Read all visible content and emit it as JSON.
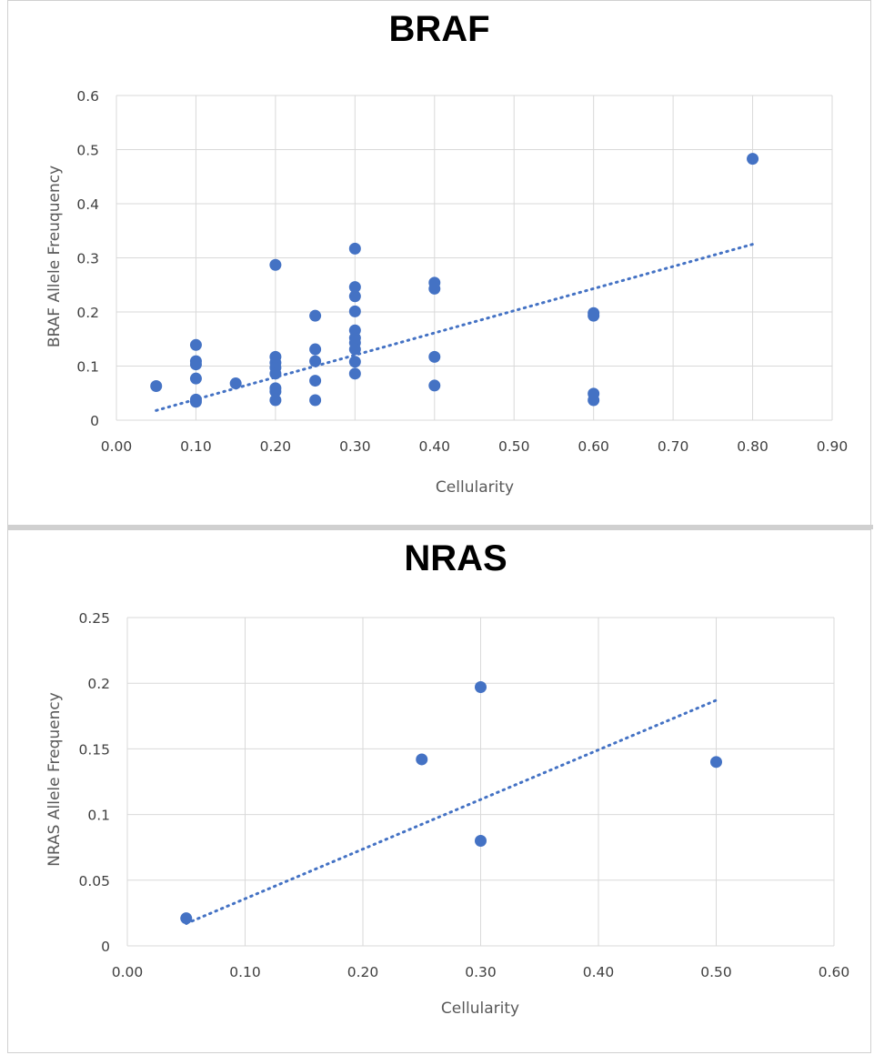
{
  "chart_data": [
    {
      "type": "scatter",
      "title": "BRAF",
      "xlabel": "Cellularity",
      "ylabel": "BRAF Allele Freuquency",
      "xlim": [
        0,
        0.9
      ],
      "ylim": [
        0,
        0.6
      ],
      "xticks": [
        "0.00",
        "0.10",
        "0.20",
        "0.30",
        "0.40",
        "0.50",
        "0.60",
        "0.70",
        "0.80",
        "0.90"
      ],
      "yticks": [
        "0",
        "0.1",
        "0.2",
        "0.3",
        "0.4",
        "0.5",
        "0.6"
      ],
      "grid": true,
      "color": "#4472c4",
      "trendline": {
        "x": [
          0.05,
          0.8
        ],
        "y": [
          0.018,
          0.325
        ],
        "style": "dotted"
      },
      "points": [
        {
          "x": 0.05,
          "y": 0.063
        },
        {
          "x": 0.1,
          "y": 0.139
        },
        {
          "x": 0.1,
          "y": 0.109
        },
        {
          "x": 0.1,
          "y": 0.103
        },
        {
          "x": 0.1,
          "y": 0.077
        },
        {
          "x": 0.1,
          "y": 0.038
        },
        {
          "x": 0.1,
          "y": 0.034
        },
        {
          "x": 0.15,
          "y": 0.068
        },
        {
          "x": 0.2,
          "y": 0.287
        },
        {
          "x": 0.2,
          "y": 0.117
        },
        {
          "x": 0.2,
          "y": 0.106
        },
        {
          "x": 0.2,
          "y": 0.097
        },
        {
          "x": 0.2,
          "y": 0.086
        },
        {
          "x": 0.2,
          "y": 0.059
        },
        {
          "x": 0.2,
          "y": 0.053
        },
        {
          "x": 0.2,
          "y": 0.037
        },
        {
          "x": 0.25,
          "y": 0.193
        },
        {
          "x": 0.25,
          "y": 0.131
        },
        {
          "x": 0.25,
          "y": 0.109
        },
        {
          "x": 0.25,
          "y": 0.073
        },
        {
          "x": 0.25,
          "y": 0.037
        },
        {
          "x": 0.3,
          "y": 0.317
        },
        {
          "x": 0.3,
          "y": 0.246
        },
        {
          "x": 0.3,
          "y": 0.229
        },
        {
          "x": 0.3,
          "y": 0.201
        },
        {
          "x": 0.3,
          "y": 0.166
        },
        {
          "x": 0.3,
          "y": 0.152
        },
        {
          "x": 0.3,
          "y": 0.143
        },
        {
          "x": 0.3,
          "y": 0.131
        },
        {
          "x": 0.3,
          "y": 0.108
        },
        {
          "x": 0.3,
          "y": 0.086
        },
        {
          "x": 0.4,
          "y": 0.254
        },
        {
          "x": 0.4,
          "y": 0.243
        },
        {
          "x": 0.4,
          "y": 0.117
        },
        {
          "x": 0.4,
          "y": 0.064
        },
        {
          "x": 0.6,
          "y": 0.198
        },
        {
          "x": 0.6,
          "y": 0.193
        },
        {
          "x": 0.6,
          "y": 0.049
        },
        {
          "x": 0.6,
          "y": 0.037
        },
        {
          "x": 0.8,
          "y": 0.483
        }
      ]
    },
    {
      "type": "scatter",
      "title": "NRAS",
      "xlabel": "Cellularity",
      "ylabel": "NRAS Allele Frequency",
      "xlim": [
        0,
        0.6
      ],
      "ylim": [
        0,
        0.25
      ],
      "xticks": [
        "0.00",
        "0.10",
        "0.20",
        "0.30",
        "0.40",
        "0.50",
        "0.60"
      ],
      "yticks": [
        "0",
        "0.05",
        "0.1",
        "0.15",
        "0.2",
        "0.25"
      ],
      "grid": true,
      "color": "#4472c4",
      "trendline": {
        "x": [
          0.05,
          0.5
        ],
        "y": [
          0.017,
          0.187
        ],
        "style": "dotted"
      },
      "points": [
        {
          "x": 0.05,
          "y": 0.021
        },
        {
          "x": 0.25,
          "y": 0.142
        },
        {
          "x": 0.3,
          "y": 0.197
        },
        {
          "x": 0.3,
          "y": 0.08
        },
        {
          "x": 0.5,
          "y": 0.14
        }
      ]
    }
  ]
}
